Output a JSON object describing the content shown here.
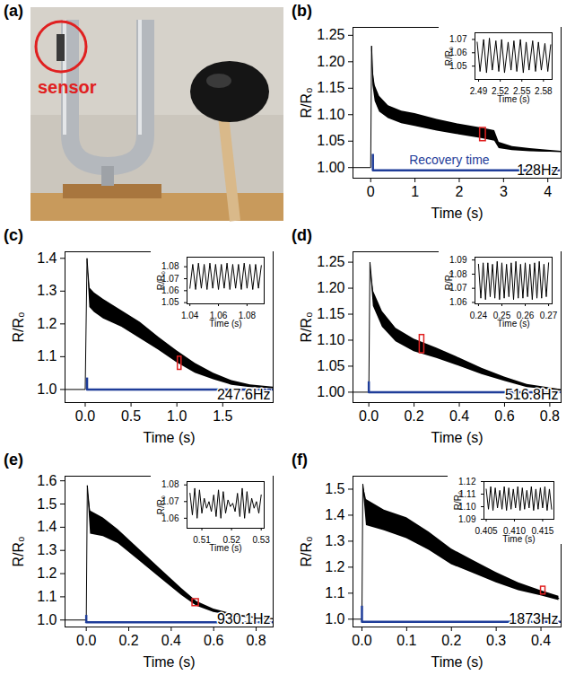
{
  "image": {
    "letter": "(a)",
    "label": "sensor"
  },
  "chart_data": [
    {
      "letter": "(b)",
      "type": "line",
      "x_label": "Time (s)",
      "y_label": "R/R₀",
      "color": "#000000",
      "x": [
        -0.4,
        -0.01,
        0,
        0.02,
        0.05,
        0.1,
        0.2,
        0.4,
        0.7,
        1.0,
        1.5,
        2.0,
        2.5,
        2.8,
        2.9,
        3.2,
        3.6,
        4.0,
        4.3
      ],
      "values": [
        1.0,
        1.0,
        1.0,
        1.23,
        1.17,
        1.14,
        1.12,
        1.105,
        1.095,
        1.09,
        1.08,
        1.072,
        1.065,
        1.06,
        1.042,
        1.036,
        1.033,
        1.031,
        1.03
      ],
      "low": [
        1.0,
        1.0,
        1.0,
        1.23,
        1.155,
        1.125,
        1.105,
        1.093,
        1.083,
        1.078,
        1.069,
        1.062,
        1.055,
        1.05,
        1.036,
        1.032,
        1.03,
        1.029,
        1.029
      ],
      "high": [
        1.0,
        1.0,
        1.0,
        1.23,
        1.185,
        1.155,
        1.135,
        1.117,
        1.107,
        1.102,
        1.091,
        1.082,
        1.075,
        1.07,
        1.048,
        1.04,
        1.036,
        1.033,
        1.031
      ],
      "xlim": [
        -0.4,
        4.3
      ],
      "xticks": [
        0,
        1,
        2,
        3,
        4
      ],
      "ylim": [
        0.98,
        1.265
      ],
      "yticks": [
        {
          "value": 1,
          "label": "1.00"
        },
        1.05,
        {
          "value": 1.1,
          "label": "1.10"
        },
        1.15,
        {
          "value": 1.2,
          "label": "1.20"
        },
        1.25
      ],
      "label_text": "128Hz",
      "recovery": {
        "label": "Recovery time",
        "x_start": 0.05,
        "x_end": 3.5,
        "x_end_dotted": 4.3,
        "y": 0.995,
        "tick_top": 1.025,
        "color": "#1f3d99"
      },
      "inset_window": {
        "x": [
          2.47,
          2.6
        ],
        "y": [
          1.05,
          1.075
        ],
        "color": "#e02020"
      },
      "inset": {
        "type": "line",
        "x_label": "Time (s)",
        "y_label": "R/R₀",
        "color": "#000000",
        "x": [
          2.488,
          2.492,
          2.497,
          2.501,
          2.505,
          2.509,
          2.514,
          2.518,
          2.522,
          2.526,
          2.531,
          2.535,
          2.539,
          2.543,
          2.548,
          2.552,
          2.556,
          2.56,
          2.565,
          2.569,
          2.573,
          2.577,
          2.582,
          2.586,
          2.59
        ],
        "values": [
          1.068,
          1.046,
          1.07,
          1.045,
          1.071,
          1.047,
          1.069,
          1.046,
          1.07,
          1.045,
          1.068,
          1.047,
          1.069,
          1.046,
          1.07,
          1.045,
          1.068,
          1.047,
          1.069,
          1.046,
          1.068,
          1.047,
          1.067,
          1.046,
          1.066
        ],
        "xlim": [
          2.485,
          2.592
        ],
        "xticks": [
          2.49,
          2.52,
          2.55,
          2.58
        ],
        "ylim": [
          1.04,
          1.075
        ],
        "yticks": [
          1.05,
          1.06,
          1.07
        ]
      }
    },
    {
      "letter": "(c)",
      "type": "line",
      "x_label": "Time (s)",
      "y_label": "R/R₀",
      "color": "#000000",
      "x": [
        -0.22,
        -0.01,
        0,
        0.02,
        0.05,
        0.1,
        0.2,
        0.4,
        0.6,
        0.8,
        1.0,
        1.2,
        1.4,
        1.6,
        1.8,
        2.05
      ],
      "values": [
        1.0,
        1.0,
        1.0,
        1.4,
        1.28,
        1.265,
        1.245,
        1.215,
        1.18,
        1.14,
        1.1,
        1.065,
        1.04,
        1.02,
        1.01,
        1.005
      ],
      "low": [
        1.0,
        1.0,
        1.0,
        1.4,
        1.25,
        1.235,
        1.215,
        1.19,
        1.155,
        1.12,
        1.082,
        1.05,
        1.03,
        1.013,
        1.006,
        1.003
      ],
      "high": [
        1.0,
        1.0,
        1.0,
        1.4,
        1.31,
        1.295,
        1.275,
        1.24,
        1.205,
        1.16,
        1.118,
        1.08,
        1.05,
        1.027,
        1.014,
        1.007
      ],
      "xlim": [
        -0.22,
        2.05
      ],
      "xticks": [
        {
          "value": 0,
          "label": "0.0"
        },
        0.5,
        {
          "value": 1,
          "label": "1.0"
        },
        1.5
      ],
      "ylim": [
        0.96,
        1.42
      ],
      "yticks": [
        {
          "value": 1,
          "label": "1.0"
        },
        1.1,
        1.2,
        1.3,
        1.4
      ],
      "label_text": "247.6Hz",
      "recovery": {
        "x_start": 0.02,
        "x_end": 1.75,
        "x_end_dotted": 2.05,
        "y": 1.0,
        "tick_top": 1.035,
        "color": "#1f3d99"
      },
      "inset_window": {
        "x": [
          1.01,
          1.05
        ],
        "y": [
          1.06,
          1.1
        ],
        "color": "#e02020"
      },
      "inset": {
        "type": "line",
        "x_label": "Time (s)",
        "y_label": "R/R₀",
        "color": "#000000",
        "x": [
          1.04,
          1.042,
          1.044,
          1.046,
          1.048,
          1.05,
          1.052,
          1.054,
          1.056,
          1.058,
          1.06,
          1.062,
          1.064,
          1.066,
          1.068,
          1.07,
          1.072,
          1.074,
          1.076,
          1.078,
          1.08,
          1.082,
          1.084,
          1.086,
          1.088,
          1.09
        ],
        "values": [
          1.062,
          1.082,
          1.061,
          1.083,
          1.062,
          1.082,
          1.061,
          1.083,
          1.062,
          1.082,
          1.061,
          1.082,
          1.062,
          1.083,
          1.061,
          1.082,
          1.062,
          1.082,
          1.061,
          1.083,
          1.062,
          1.082,
          1.061,
          1.082,
          1.062,
          1.081
        ],
        "xlim": [
          1.038,
          1.092
        ],
        "xticks": [
          1.04,
          1.06,
          1.08
        ],
        "ylim": [
          1.049,
          1.088
        ],
        "yticks": [
          1.05,
          1.06,
          1.07,
          1.08
        ]
      }
    },
    {
      "letter": "(d)",
      "type": "line",
      "x_label": "Time (s)",
      "y_label": "R/R₀",
      "color": "#000000",
      "x": [
        -0.07,
        -0.002,
        0,
        0.005,
        0.02,
        0.06,
        0.12,
        0.2,
        0.3,
        0.4,
        0.5,
        0.6,
        0.7,
        0.85
      ],
      "values": [
        1.0,
        1.0,
        1.0,
        1.25,
        1.18,
        1.14,
        1.11,
        1.09,
        1.075,
        1.058,
        1.04,
        1.025,
        1.012,
        1.004
      ],
      "low": [
        1.0,
        1.0,
        1.0,
        1.25,
        1.165,
        1.125,
        1.097,
        1.078,
        1.065,
        1.05,
        1.034,
        1.021,
        1.009,
        1.003
      ],
      "high": [
        1.0,
        1.0,
        1.0,
        1.25,
        1.195,
        1.155,
        1.123,
        1.102,
        1.085,
        1.066,
        1.046,
        1.029,
        1.015,
        1.005
      ],
      "xlim": [
        -0.07,
        0.85
      ],
      "xticks": [
        {
          "value": 0,
          "label": "0.0"
        },
        0.2,
        0.4,
        0.6,
        0.8
      ],
      "ylim": [
        0.98,
        1.27
      ],
      "yticks": [
        {
          "value": 1,
          "label": "1.00"
        },
        1.05,
        {
          "value": 1.1,
          "label": "1.10"
        },
        1.15,
        {
          "value": 1.2,
          "label": "1.20"
        },
        1.25
      ],
      "label_text": "516.8Hz",
      "recovery": {
        "x_start": 0.0,
        "x_end": 0.75,
        "x_end_dotted": 0.85,
        "y": 1.0,
        "tick_top": 1.02,
        "color": "#1f3d99"
      },
      "inset_window": {
        "x": [
          0.225,
          0.245
        ],
        "y": [
          1.075,
          1.11
        ],
        "color": "#e02020"
      },
      "inset": {
        "type": "line",
        "x_label": "Time (s)",
        "y_label": "R/R₀",
        "color": "#000000",
        "x": [
          0.24,
          0.241,
          0.242,
          0.243,
          0.244,
          0.245,
          0.246,
          0.247,
          0.248,
          0.249,
          0.25,
          0.251,
          0.252,
          0.253,
          0.254,
          0.255,
          0.256,
          0.257,
          0.258,
          0.259,
          0.26,
          0.261,
          0.262,
          0.263,
          0.264,
          0.265,
          0.266,
          0.267,
          0.268,
          0.269,
          0.27
        ],
        "values": [
          1.087,
          1.063,
          1.088,
          1.062,
          1.088,
          1.064,
          1.087,
          1.063,
          1.089,
          1.062,
          1.088,
          1.063,
          1.087,
          1.064,
          1.088,
          1.062,
          1.089,
          1.063,
          1.087,
          1.063,
          1.088,
          1.064,
          1.087,
          1.062,
          1.088,
          1.063,
          1.089,
          1.063,
          1.087,
          1.064,
          1.088
        ],
        "xlim": [
          0.2385,
          0.2715
        ],
        "xticks": [
          0.24,
          0.25,
          0.26,
          0.27
        ],
        "ylim": [
          1.059,
          1.092
        ],
        "yticks": [
          1.06,
          1.07,
          1.08,
          1.09
        ]
      }
    },
    {
      "letter": "(e)",
      "type": "line",
      "x_label": "Time (s)",
      "y_label": "R/R₀",
      "color": "#000000",
      "x": [
        -0.1,
        -0.002,
        0,
        0.005,
        0.02,
        0.08,
        0.15,
        0.25,
        0.35,
        0.45,
        0.52,
        0.6,
        0.7,
        0.8,
        0.88
      ],
      "values": [
        1.0,
        1.0,
        1.0,
        1.58,
        1.42,
        1.4,
        1.36,
        1.28,
        1.2,
        1.12,
        1.07,
        1.04,
        1.02,
        1.01,
        1.005
      ],
      "low": [
        1.0,
        1.0,
        1.0,
        1.58,
        1.37,
        1.36,
        1.33,
        1.255,
        1.18,
        1.105,
        1.06,
        1.033,
        1.016,
        1.008,
        1.004
      ],
      "high": [
        1.0,
        1.0,
        1.0,
        1.58,
        1.47,
        1.44,
        1.39,
        1.305,
        1.22,
        1.135,
        1.08,
        1.047,
        1.024,
        1.012,
        1.006
      ],
      "xlim": [
        -0.1,
        0.88
      ],
      "xticks": [
        {
          "value": 0,
          "label": "0.0"
        },
        0.2,
        0.4,
        0.6,
        0.8
      ],
      "ylim": [
        0.97,
        1.62
      ],
      "yticks": [
        {
          "value": 1,
          "label": "1.0"
        },
        1.1,
        1.2,
        1.3,
        1.4,
        1.5,
        1.6
      ],
      "label_text": "930.1Hz",
      "recovery": {
        "x_start": 0.0,
        "x_end": 0.75,
        "x_end_dotted": 0.88,
        "y": 0.99,
        "tick_top": 1.02,
        "color": "#1f3d99"
      },
      "inset_window": {
        "x": [
          0.5,
          0.53
        ],
        "y": [
          1.06,
          1.09
        ],
        "color": "#e02020"
      },
      "inset": {
        "type": "line",
        "x_label": "Time (s)",
        "y_label": "R/R₀",
        "color": "#000000",
        "x": [
          0.506,
          0.5068,
          0.5076,
          0.5084,
          0.5092,
          0.51,
          0.5108,
          0.5116,
          0.5124,
          0.5132,
          0.514,
          0.5148,
          0.5156,
          0.5164,
          0.5172,
          0.518,
          0.5188,
          0.5196,
          0.5204,
          0.5212,
          0.522,
          0.5228,
          0.5236,
          0.5244,
          0.5252,
          0.526,
          0.5268,
          0.5276,
          0.5284,
          0.5292,
          0.53
        ],
        "values": [
          1.075,
          1.062,
          1.078,
          1.06,
          1.077,
          1.063,
          1.072,
          1.066,
          1.07,
          1.064,
          1.074,
          1.061,
          1.077,
          1.06,
          1.076,
          1.063,
          1.071,
          1.067,
          1.069,
          1.064,
          1.075,
          1.061,
          1.078,
          1.06,
          1.076,
          1.063,
          1.072,
          1.066,
          1.07,
          1.063,
          1.074
        ],
        "xlim": [
          0.505,
          0.531
        ],
        "xticks": [
          0.51,
          0.52,
          0.53
        ],
        "ylim": [
          1.054,
          1.082
        ],
        "yticks": [
          1.06,
          1.07,
          1.08
        ]
      }
    },
    {
      "letter": "(f)",
      "type": "line",
      "x_label": "Time (s)",
      "y_label": "R/R₀",
      "color": "#000000",
      "x": [
        -0.02,
        -0.001,
        0,
        0.002,
        0.01,
        0.05,
        0.1,
        0.15,
        0.2,
        0.25,
        0.3,
        0.35,
        0.4,
        0.44
      ],
      "values": [
        1.0,
        1.0,
        1.0,
        1.52,
        1.41,
        1.38,
        1.35,
        1.3,
        1.24,
        1.2,
        1.16,
        1.125,
        1.1,
        1.08
      ],
      "low": [
        1.0,
        1.0,
        1.0,
        1.52,
        1.36,
        1.34,
        1.31,
        1.265,
        1.21,
        1.175,
        1.14,
        1.11,
        1.09,
        1.072
      ],
      "high": [
        1.0,
        1.0,
        1.0,
        1.52,
        1.46,
        1.42,
        1.39,
        1.335,
        1.27,
        1.225,
        1.18,
        1.14,
        1.11,
        1.088
      ],
      "xlim": [
        -0.02,
        0.445
      ],
      "xticks": [
        {
          "value": 0,
          "label": "0.0"
        },
        0.1,
        0.2,
        0.3,
        0.4
      ],
      "ylim": [
        0.97,
        1.55
      ],
      "yticks": [
        {
          "value": 1,
          "label": "1.0"
        },
        1.1,
        1.2,
        1.3,
        1.4,
        1.5
      ],
      "label_text": "1873Hz",
      "recovery": {
        "x_start": 0.0,
        "x_end": 0.36,
        "x_end_dotted": 0.445,
        "y": 0.99,
        "tick_top": 1.05,
        "color": "#1f3d99"
      },
      "inset_window": {
        "x": [
          0.4,
          0.41
        ],
        "y": [
          1.095,
          1.125
        ],
        "color": "#e02020"
      },
      "inset": {
        "type": "line",
        "x_label": "Time (s)",
        "y_label": "R/R₀",
        "color": "#000000",
        "x": [
          0.405,
          0.4054,
          0.4058,
          0.4062,
          0.4066,
          0.407,
          0.4074,
          0.4078,
          0.4082,
          0.4086,
          0.409,
          0.4094,
          0.4098,
          0.4102,
          0.4106,
          0.411,
          0.4114,
          0.4118,
          0.4122,
          0.4126,
          0.413,
          0.4134,
          0.4138,
          0.4142,
          0.4146,
          0.415,
          0.4154,
          0.4158,
          0.4162,
          0.4166
        ],
        "values": [
          1.114,
          1.098,
          1.116,
          1.097,
          1.115,
          1.099,
          1.113,
          1.098,
          1.116,
          1.097,
          1.115,
          1.098,
          1.114,
          1.099,
          1.116,
          1.097,
          1.115,
          1.098,
          1.113,
          1.099,
          1.116,
          1.097,
          1.114,
          1.098,
          1.115,
          1.099,
          1.116,
          1.097,
          1.114,
          1.098
        ],
        "xlim": [
          0.4046,
          0.417
        ],
        "xticks": [
          0.405,
          {
            "value": 0.41,
            "label": "0.410"
          },
          0.415
        ],
        "ylim": [
          1.09,
          1.12
        ],
        "yticks": [
          1.09,
          {
            "value": 1.1,
            "label": "1.10"
          },
          1.11,
          1.12
        ]
      }
    }
  ]
}
